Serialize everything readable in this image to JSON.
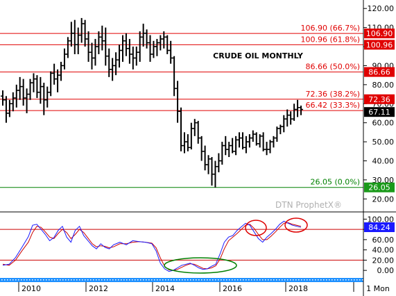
{
  "chart_data": {
    "type": "ohlc",
    "title": "CRUDE OIL MONTHLY",
    "watermark": "DTN ProphetX®",
    "timeframe_label": "1 Mon",
    "x_tick_labels": [
      "2010",
      "2012",
      "2014",
      "2016",
      "2018"
    ],
    "price_axis": {
      "ticks": [
        "120.00",
        "110.00",
        "100.00",
        "90.00",
        "80.00",
        "70.00",
        "60.00",
        "50.00",
        "40.00",
        "30.00",
        "20.00"
      ],
      "ylim": [
        15,
        123
      ]
    },
    "stoch_axis": {
      "ticks": [
        "100.00",
        "80.00",
        "60.00",
        "40.00",
        "20.00",
        "0.00"
      ],
      "ylim": [
        -12,
        110
      ],
      "hlines": [
        80,
        20
      ]
    },
    "retracements": [
      {
        "label": "106.90 (66.7%)",
        "value": 106.9,
        "tag": "106.90",
        "color": "#e00000",
        "tag_bg": "#e00000"
      },
      {
        "label": "100.96 (61.8%)",
        "value": 100.96,
        "tag": "100.96",
        "color": "#e00000",
        "tag_bg": "#e00000"
      },
      {
        "label": "86.66 (50.0%)",
        "value": 86.66,
        "tag": "86.66",
        "color": "#e00000",
        "tag_bg": "#e00000"
      },
      {
        "label": "72.36 (38.2%)",
        "value": 72.36,
        "tag": "72.36",
        "color": "#e00000",
        "tag_bg": "#e00000"
      },
      {
        "label": "66.42 (33.3%)",
        "value": 66.42,
        "tag": "",
        "color": "#e00000",
        "tag_bg": ""
      },
      {
        "label": "26.05 (0.0%)",
        "value": 26.05,
        "tag": "26.05",
        "color": "#008000",
        "tag_bg": "#1a9a1a"
      }
    ],
    "last_price": {
      "tag": "67.11",
      "value": 67.11
    },
    "stoch_last": {
      "tag": "84.24",
      "value": 84.24
    },
    "bars": [
      [
        74,
        77,
        69,
        72
      ],
      [
        72,
        74,
        60,
        65
      ],
      [
        65,
        72,
        63,
        70
      ],
      [
        70,
        76,
        66,
        73
      ],
      [
        73,
        80,
        68,
        77
      ],
      [
        77,
        84,
        72,
        79
      ],
      [
        79,
        83,
        69,
        73
      ],
      [
        73,
        78,
        65,
        75
      ],
      [
        75,
        83,
        72,
        81
      ],
      [
        81,
        86,
        76,
        83
      ],
      [
        83,
        85,
        73,
        76
      ],
      [
        76,
        84,
        70,
        79
      ],
      [
        79,
        81,
        64,
        72
      ],
      [
        72,
        79,
        68,
        76
      ],
      [
        76,
        87,
        74,
        86
      ],
      [
        86,
        91,
        80,
        83
      ],
      [
        83,
        88,
        76,
        85
      ],
      [
        85,
        92,
        82,
        90
      ],
      [
        90,
        99,
        88,
        96
      ],
      [
        96,
        105,
        94,
        103
      ],
      [
        103,
        113,
        100,
        107
      ],
      [
        107,
        114,
        96,
        101
      ],
      [
        101,
        110,
        96,
        106
      ],
      [
        106,
        115,
        102,
        112
      ],
      [
        112,
        114,
        100,
        104
      ],
      [
        104,
        108,
        92,
        97
      ],
      [
        97,
        102,
        88,
        94
      ],
      [
        94,
        104,
        90,
        100
      ],
      [
        100,
        108,
        96,
        105
      ],
      [
        105,
        111,
        98,
        103
      ],
      [
        103,
        110,
        90,
        95
      ],
      [
        95,
        99,
        84,
        88
      ],
      [
        88,
        94,
        82,
        90
      ],
      [
        90,
        97,
        85,
        93
      ],
      [
        93,
        101,
        89,
        98
      ],
      [
        98,
        106,
        92,
        103
      ],
      [
        103,
        107,
        95,
        99
      ],
      [
        99,
        104,
        91,
        96
      ],
      [
        96,
        100,
        88,
        94
      ],
      [
        94,
        100,
        90,
        97
      ],
      [
        97,
        108,
        92,
        105
      ],
      [
        105,
        112,
        100,
        107
      ],
      [
        107,
        109,
        99,
        102
      ],
      [
        102,
        106,
        92,
        96
      ],
      [
        96,
        103,
        94,
        100
      ],
      [
        100,
        104,
        95,
        102
      ],
      [
        102,
        106,
        98,
        104
      ],
      [
        104,
        108,
        99,
        105
      ],
      [
        105,
        106,
        96,
        98
      ],
      [
        98,
        103,
        91,
        94
      ],
      [
        94,
        95,
        74,
        78
      ],
      [
        78,
        82,
        60,
        66
      ],
      [
        66,
        68,
        45,
        48
      ],
      [
        48,
        55,
        44,
        50
      ],
      [
        50,
        54,
        45,
        47
      ],
      [
        47,
        60,
        46,
        57
      ],
      [
        57,
        62,
        53,
        60
      ],
      [
        60,
        61,
        49,
        52
      ],
      [
        52,
        53,
        40,
        45
      ],
      [
        45,
        48,
        35,
        38
      ],
      [
        38,
        43,
        33,
        41
      ],
      [
        41,
        42,
        27,
        33
      ],
      [
        33,
        40,
        26,
        37
      ],
      [
        37,
        44,
        34,
        40
      ],
      [
        40,
        50,
        38,
        48
      ],
      [
        48,
        53,
        43,
        46
      ],
      [
        46,
        50,
        42,
        48
      ],
      [
        48,
        52,
        44,
        45
      ],
      [
        45,
        53,
        43,
        51
      ],
      [
        51,
        55,
        47,
        52
      ],
      [
        52,
        55,
        46,
        47
      ],
      [
        47,
        53,
        44,
        50
      ],
      [
        50,
        54,
        47,
        52
      ],
      [
        52,
        56,
        50,
        54
      ],
      [
        54,
        55,
        48,
        49
      ],
      [
        49,
        54,
        47,
        53
      ],
      [
        53,
        55,
        45,
        46
      ],
      [
        46,
        50,
        43,
        46
      ],
      [
        46,
        51,
        44,
        50
      ],
      [
        50,
        53,
        47,
        52
      ],
      [
        52,
        58,
        50,
        57
      ],
      [
        57,
        59,
        54,
        58
      ],
      [
        58,
        64,
        55,
        62
      ],
      [
        62,
        67,
        58,
        64
      ],
      [
        64,
        66,
        59,
        62
      ],
      [
        62,
        70,
        61,
        67
      ],
      [
        67,
        72,
        63,
        68
      ],
      [
        68,
        69,
        64,
        67
      ]
    ],
    "stoch_k": [
      [
        0,
        10
      ],
      [
        0.03,
        12
      ],
      [
        0.06,
        25
      ],
      [
        0.09,
        45
      ],
      [
        0.12,
        66
      ],
      [
        0.14,
        88
      ],
      [
        0.16,
        90
      ],
      [
        0.18,
        80
      ],
      [
        0.2,
        70
      ],
      [
        0.22,
        58
      ],
      [
        0.24,
        64
      ],
      [
        0.26,
        78
      ],
      [
        0.28,
        86
      ],
      [
        0.3,
        65
      ],
      [
        0.32,
        55
      ],
      [
        0.34,
        78
      ],
      [
        0.36,
        86
      ],
      [
        0.38,
        68
      ],
      [
        0.4,
        58
      ],
      [
        0.42,
        48
      ],
      [
        0.44,
        42
      ],
      [
        0.46,
        52
      ],
      [
        0.48,
        45
      ],
      [
        0.5,
        42
      ],
      [
        0.52,
        50
      ],
      [
        0.55,
        55
      ],
      [
        0.58,
        50
      ],
      [
        0.61,
        58
      ],
      [
        0.64,
        56
      ],
      [
        0.67,
        55
      ],
      [
        0.7,
        52
      ],
      [
        0.72,
        38
      ],
      [
        0.74,
        14
      ],
      [
        0.76,
        3
      ],
      [
        0.78,
        -2
      ],
      [
        0.8,
        0
      ],
      [
        0.82,
        5
      ],
      [
        0.84,
        10
      ],
      [
        0.86,
        12
      ],
      [
        0.88,
        14
      ],
      [
        0.9,
        10
      ],
      [
        0.92,
        5
      ],
      [
        0.94,
        2
      ],
      [
        0.96,
        3
      ],
      [
        0.98,
        8
      ],
      [
        1.0,
        12
      ],
      [
        1.02,
        32
      ],
      [
        1.04,
        55
      ],
      [
        1.06,
        65
      ],
      [
        1.08,
        68
      ],
      [
        1.1,
        78
      ],
      [
        1.12,
        85
      ],
      [
        1.14,
        92
      ],
      [
        1.16,
        88
      ],
      [
        1.18,
        75
      ],
      [
        1.2,
        62
      ],
      [
        1.22,
        55
      ],
      [
        1.24,
        65
      ],
      [
        1.26,
        72
      ],
      [
        1.28,
        80
      ],
      [
        1.3,
        90
      ],
      [
        1.32,
        96
      ],
      [
        1.34,
        92
      ],
      [
        1.36,
        88
      ],
      [
        1.38,
        86
      ],
      [
        1.4,
        84
      ]
    ],
    "stoch_d": [
      [
        0,
        12
      ],
      [
        0.03,
        10
      ],
      [
        0.06,
        20
      ],
      [
        0.09,
        38
      ],
      [
        0.12,
        55
      ],
      [
        0.14,
        74
      ],
      [
        0.16,
        86
      ],
      [
        0.18,
        84
      ],
      [
        0.2,
        75
      ],
      [
        0.22,
        65
      ],
      [
        0.24,
        62
      ],
      [
        0.26,
        72
      ],
      [
        0.28,
        80
      ],
      [
        0.3,
        74
      ],
      [
        0.32,
        62
      ],
      [
        0.34,
        70
      ],
      [
        0.36,
        80
      ],
      [
        0.38,
        74
      ],
      [
        0.4,
        63
      ],
      [
        0.42,
        52
      ],
      [
        0.44,
        46
      ],
      [
        0.46,
        48
      ],
      [
        0.48,
        47
      ],
      [
        0.5,
        44
      ],
      [
        0.52,
        46
      ],
      [
        0.55,
        52
      ],
      [
        0.58,
        52
      ],
      [
        0.61,
        55
      ],
      [
        0.64,
        56
      ],
      [
        0.67,
        55
      ],
      [
        0.7,
        53
      ],
      [
        0.72,
        44
      ],
      [
        0.74,
        24
      ],
      [
        0.76,
        8
      ],
      [
        0.78,
        1
      ],
      [
        0.8,
        0
      ],
      [
        0.82,
        2
      ],
      [
        0.84,
        6
      ],
      [
        0.86,
        10
      ],
      [
        0.88,
        13
      ],
      [
        0.9,
        12
      ],
      [
        0.92,
        8
      ],
      [
        0.94,
        4
      ],
      [
        0.96,
        3
      ],
      [
        0.98,
        5
      ],
      [
        1.0,
        9
      ],
      [
        1.02,
        22
      ],
      [
        1.04,
        42
      ],
      [
        1.06,
        58
      ],
      [
        1.08,
        65
      ],
      [
        1.1,
        72
      ],
      [
        1.12,
        80
      ],
      [
        1.14,
        88
      ],
      [
        1.16,
        90
      ],
      [
        1.18,
        82
      ],
      [
        1.2,
        70
      ],
      [
        1.22,
        60
      ],
      [
        1.24,
        60
      ],
      [
        1.26,
        67
      ],
      [
        1.28,
        75
      ],
      [
        1.3,
        84
      ],
      [
        1.32,
        92
      ],
      [
        1.34,
        93
      ],
      [
        1.36,
        90
      ],
      [
        1.38,
        88
      ],
      [
        1.4,
        86
      ]
    ],
    "colors": {
      "bars": "#000000",
      "stoch_k": "#1a1aff",
      "stoch_d": "#cc0000",
      "stoch_hline": "#cc0000",
      "circle_red": "#dd0000",
      "circle_green": "#008000",
      "last_bg": "#000000",
      "stoch_tag_bg": "#1a1aff",
      "timeline": "#1e90ff"
    }
  }
}
